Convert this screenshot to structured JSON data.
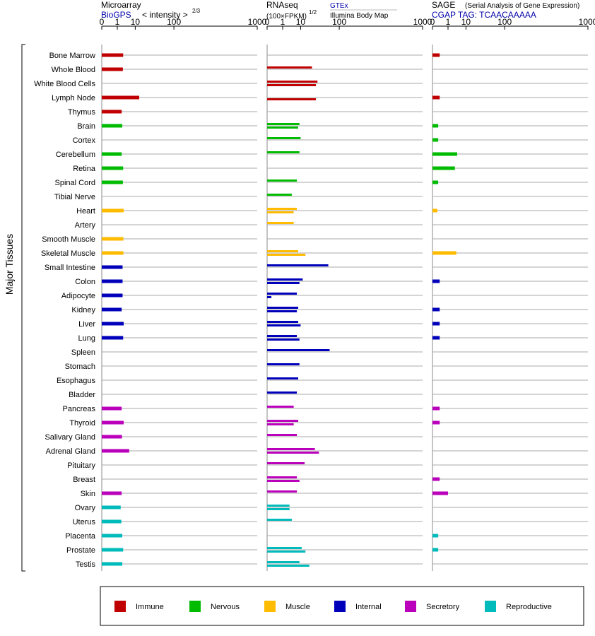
{
  "page": {
    "y_axis_title": "Major Tissues"
  },
  "panels": {
    "microarray": {
      "title": "Microarray",
      "source": "BioGPS",
      "scale_label": "< intensity >",
      "scale_exponent": "2/3",
      "ticks": [
        "0",
        "1",
        "10",
        "100",
        "1000"
      ]
    },
    "rnaseq": {
      "title": "RNAseq",
      "unit_label": "(100×FPKM)",
      "unit_exponent": "1/2",
      "source_1": "GTEx",
      "source_2": "Illumina Body Map",
      "ticks": [
        "0",
        "1",
        "10",
        "100",
        "1000"
      ]
    },
    "sage": {
      "title": "SAGE",
      "subtitle": "(Serial Analysis of Gene Expression)",
      "tag_label": "CGAP TAG: TCAACAAAAA",
      "ticks": [
        "0",
        "1",
        "10",
        "100",
        "1000"
      ]
    }
  },
  "legend": {
    "items": [
      {
        "label": "Immune",
        "color": "#c00000"
      },
      {
        "label": "Nervous",
        "color": "#00bb00"
      },
      {
        "label": "Muscle",
        "color": "#ffbb00"
      },
      {
        "label": "Internal",
        "color": "#0000bb"
      },
      {
        "label": "Secretory",
        "color": "#bb00bb"
      },
      {
        "label": "Reproductive",
        "color": "#00bbbb"
      }
    ]
  },
  "chart_data": {
    "type": "bar",
    "orientation": "horizontal",
    "x_scale": "power (x^(1/3)-like, ticks at 0, 1, 10, 100, 1000)",
    "xlim": [
      0,
      1000
    ],
    "categories": [
      "Bone Marrow",
      "Whole Blood",
      "White Blood Cells",
      "Lymph Node",
      "Thymus",
      "Brain",
      "Cortex",
      "Cerebellum",
      "Retina",
      "Spinal Cord",
      "Tibial Nerve",
      "Heart",
      "Artery",
      "Smooth Muscle",
      "Skeletal Muscle",
      "Small Intestine",
      "Colon",
      "Adipocyte",
      "Kidney",
      "Liver",
      "Lung",
      "Spleen",
      "Stomach",
      "Esophagus",
      "Bladder",
      "Pancreas",
      "Thyroid",
      "Salivary Gland",
      "Adrenal Gland",
      "Pituitary",
      "Breast",
      "Skin",
      "Ovary",
      "Uterus",
      "Placenta",
      "Prostate",
      "Testis"
    ],
    "groups": [
      "Immune",
      "Immune",
      "Immune",
      "Immune",
      "Immune",
      "Nervous",
      "Nervous",
      "Nervous",
      "Nervous",
      "Nervous",
      "Nervous",
      "Muscle",
      "Muscle",
      "Muscle",
      "Muscle",
      "Internal",
      "Internal",
      "Internal",
      "Internal",
      "Internal",
      "Internal",
      "Internal",
      "Internal",
      "Internal",
      "Internal",
      "Secretory",
      "Secretory",
      "Secretory",
      "Secretory",
      "Secretory",
      "Secretory",
      "Secretory",
      "Reproductive",
      "Reproductive",
      "Reproductive",
      "Reproductive",
      "Reproductive"
    ],
    "series": [
      {
        "name": "Microarray",
        "values": [
          2.6,
          2.5,
          null,
          14,
          2.1,
          2.3,
          null,
          2.1,
          2.6,
          2.5,
          null,
          2.8,
          null,
          2.7,
          2.7,
          2.4,
          2.4,
          2.4,
          2.1,
          2.8,
          2.6,
          null,
          null,
          null,
          null,
          2.1,
          2.8,
          2.2,
          5.5,
          null,
          null,
          2.1,
          1.8,
          2.0,
          2.3,
          2.6,
          2.3
        ]
      },
      {
        "name": "RNAseq GTEx",
        "values": [
          null,
          24,
          34,
          null,
          null,
          9,
          10,
          9,
          null,
          7,
          4,
          7,
          5,
          null,
          8,
          61,
          12,
          7,
          8,
          8,
          7,
          65,
          9,
          8,
          7,
          5,
          8,
          7,
          29,
          14,
          7,
          7,
          3,
          4,
          null,
          11,
          9
        ]
      },
      {
        "name": "RNAseq Illumina Body Map",
        "values": [
          null,
          null,
          31,
          31,
          null,
          8,
          null,
          null,
          null,
          null,
          null,
          5,
          null,
          null,
          15,
          null,
          9,
          0.02,
          7,
          10,
          9,
          null,
          null,
          null,
          null,
          null,
          5,
          null,
          37,
          null,
          9,
          null,
          3,
          null,
          null,
          15,
          20
        ]
      },
      {
        "name": "SAGE",
        "values": [
          0.1,
          null,
          null,
          0.1,
          null,
          0.05,
          0.05,
          4,
          3,
          0.05,
          null,
          0.03,
          null,
          null,
          3.6,
          null,
          0.1,
          null,
          0.1,
          0.1,
          0.1,
          null,
          null,
          null,
          null,
          0.1,
          0.1,
          null,
          null,
          null,
          0.1,
          1.0,
          null,
          null,
          0.05,
          0.05,
          null
        ]
      }
    ]
  }
}
